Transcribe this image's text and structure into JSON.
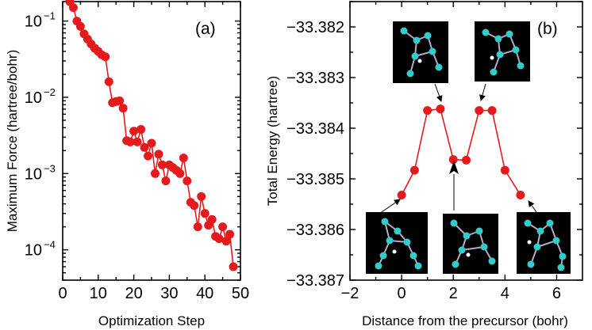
{
  "chart_data": [
    {
      "panel_label": "(a)",
      "type": "line",
      "xlabel": "Optimization Step",
      "ylabel": "Maximum Force (hartree/bohr)",
      "yscale": "log",
      "xlim": [
        0,
        50
      ],
      "ylim": [
        4e-05,
        0.18
      ],
      "x_ticks": [
        0,
        10,
        20,
        30,
        40,
        50
      ],
      "y_ticks": [
        {
          "value": 0.1,
          "base": "10",
          "exp": "−1"
        },
        {
          "value": 0.01,
          "base": "10",
          "exp": "−2"
        },
        {
          "value": 0.001,
          "base": "10",
          "exp": "−3"
        },
        {
          "value": 0.0001,
          "base": "10",
          "exp": "−4"
        }
      ],
      "color": "#e41a1c",
      "x": [
        2,
        3,
        4,
        5,
        6,
        7,
        8,
        9,
        10,
        11,
        12,
        13,
        14,
        15,
        16,
        17,
        18,
        19,
        20,
        21,
        22,
        23,
        24,
        25,
        26,
        27,
        28,
        29,
        30,
        31,
        32,
        33,
        34,
        35,
        36,
        37,
        38,
        39,
        40,
        41,
        42,
        43,
        44,
        45,
        46,
        47,
        48
      ],
      "y": [
        0.18,
        0.15,
        0.1,
        0.085,
        0.068,
        0.058,
        0.05,
        0.044,
        0.04,
        0.036,
        0.034,
        0.016,
        0.0085,
        0.0088,
        0.009,
        0.0072,
        0.0027,
        0.0026,
        0.0036,
        0.0026,
        0.0038,
        0.0022,
        0.0017,
        0.0025,
        0.001,
        0.0018,
        0.0013,
        0.0008,
        0.0013,
        0.0012,
        0.0011,
        0.001,
        0.0016,
        0.0008,
        0.00042,
        0.00038,
        0.0002,
        0.0005,
        0.0003,
        0.00021,
        0.00025,
        0.00015,
        0.00014,
        0.0002,
        0.00013,
        0.00016,
        6e-05
      ]
    },
    {
      "panel_label": "(b)",
      "type": "line",
      "xlabel": "Distance from the precursor (bohr)",
      "ylabel": "Total Energy (hartree)",
      "xlim": [
        -2,
        7
      ],
      "ylim": [
        -33.387,
        -33.3815
      ],
      "x_ticks": [
        -2,
        0,
        2,
        4,
        6
      ],
      "x_tick_labels": [
        "−2",
        "0",
        "2",
        "4",
        "6"
      ],
      "y_ticks": [
        -33.382,
        -33.383,
        -33.384,
        -33.385,
        -33.386,
        -33.387
      ],
      "y_tick_labels": [
        "−33.382",
        "−33.383",
        "−33.384",
        "−33.385",
        "−33.386",
        "−33.387"
      ],
      "color": "#e41a1c",
      "x": [
        0,
        0.5,
        1.0,
        1.5,
        2.0,
        2.5,
        3.0,
        3.5,
        4.0,
        4.6
      ],
      "y": [
        -33.38532,
        -33.38483,
        -33.38365,
        -33.38362,
        -33.38462,
        -33.38463,
        -33.38365,
        -33.38365,
        -33.38483,
        -33.38532
      ],
      "insets": [
        {
          "name": "precursor-structure"
        },
        {
          "name": "transition-state-1-structure"
        },
        {
          "name": "intermediate-structure"
        },
        {
          "name": "transition-state-2-structure"
        },
        {
          "name": "final-structure"
        }
      ]
    }
  ]
}
